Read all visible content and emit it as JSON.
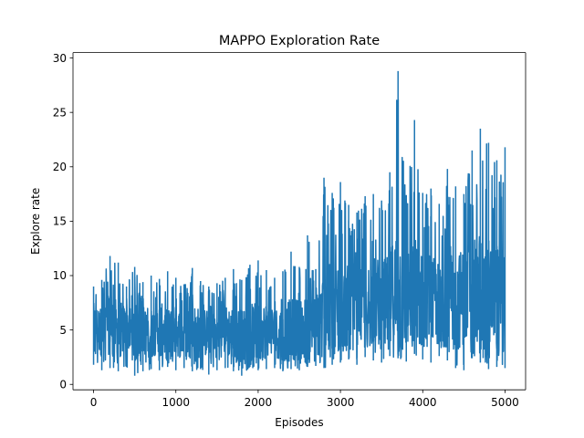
{
  "chart_data": {
    "type": "line",
    "title": "MAPPO Exploration Rate",
    "xlabel": "Episodes",
    "ylabel": "Explore rate",
    "xlim": [
      -250,
      5250
    ],
    "ylim": [
      -0.5,
      30.5
    ],
    "xticks": [
      0,
      1000,
      2000,
      3000,
      4000,
      5000
    ],
    "yticks": [
      0,
      5,
      10,
      15,
      20,
      25,
      30
    ],
    "grid": false,
    "legend": "none",
    "series": [
      {
        "color": "#1f77b4",
        "x": [
          0,
          100,
          200,
          300,
          400,
          500,
          600,
          700,
          800,
          900,
          1000,
          1100,
          1200,
          1300,
          1400,
          1500,
          1600,
          1700,
          1800,
          1900,
          2000,
          2100,
          2200,
          2300,
          2400,
          2500,
          2600,
          2700,
          2800,
          2900,
          3000,
          3100,
          3200,
          3300,
          3400,
          3500,
          3600,
          3700,
          3800,
          3900,
          4000,
          4100,
          4200,
          4300,
          4400,
          4500,
          4600,
          4700,
          4800,
          4900,
          5000
        ],
        "y": [
          5.5,
          4.8,
          5.6,
          4.9,
          5.2,
          4.6,
          5.0,
          4.7,
          5.3,
          4.5,
          4.9,
          4.4,
          5.1,
          4.6,
          4.8,
          4.3,
          5.0,
          4.7,
          4.5,
          4.9,
          4.6,
          5.1,
          4.8,
          4.7,
          5.0,
          5.3,
          4.8,
          5.6,
          6.0,
          6.8,
          7.2,
          6.9,
          7.5,
          7.0,
          7.8,
          7.3,
          7.6,
          8.2,
          7.4,
          8.0,
          7.6,
          7.9,
          7.2,
          8.3,
          7.5,
          8.1,
          7.7,
          8.4,
          7.9,
          8.2,
          7.5
        ],
        "low": [
          1.8,
          1.3,
          1.5,
          1.2,
          1.6,
          0.8,
          1.2,
          1.4,
          1.3,
          1.6,
          1.3,
          1.5,
          1.2,
          1.4,
          0.9,
          1.3,
          1.5,
          1.2,
          0.8,
          1.6,
          1.3,
          1.4,
          1.5,
          1.2,
          1.4,
          1.3,
          1.6,
          1.7,
          1.5,
          1.8,
          2.0,
          2.3,
          1.8,
          2.5,
          2.2,
          2.0,
          2.6,
          2.4,
          2.1,
          2.8,
          2.3,
          2.0,
          2.6,
          2.2,
          1.5,
          1.3,
          2.4,
          2.0,
          1.4,
          1.6,
          1.5
        ],
        "high": [
          9.0,
          9.6,
          11.8,
          11.2,
          9.0,
          10.8,
          9.4,
          10.0,
          9.7,
          10.4,
          9.8,
          9.2,
          10.7,
          9.5,
          9.0,
          9.3,
          9.8,
          10.6,
          9.6,
          11.0,
          11.4,
          10.5,
          9.8,
          10.4,
          12.2,
          10.8,
          13.7,
          10.6,
          19.0,
          17.6,
          18.6,
          16.5,
          15.8,
          17.3,
          17.5,
          16.9,
          19.5,
          28.8,
          17.4,
          24.3,
          17.6,
          18.0,
          16.6,
          19.8,
          18.2,
          17.5,
          21.5,
          23.5,
          22.2,
          20.6,
          21.8
        ]
      }
    ]
  }
}
